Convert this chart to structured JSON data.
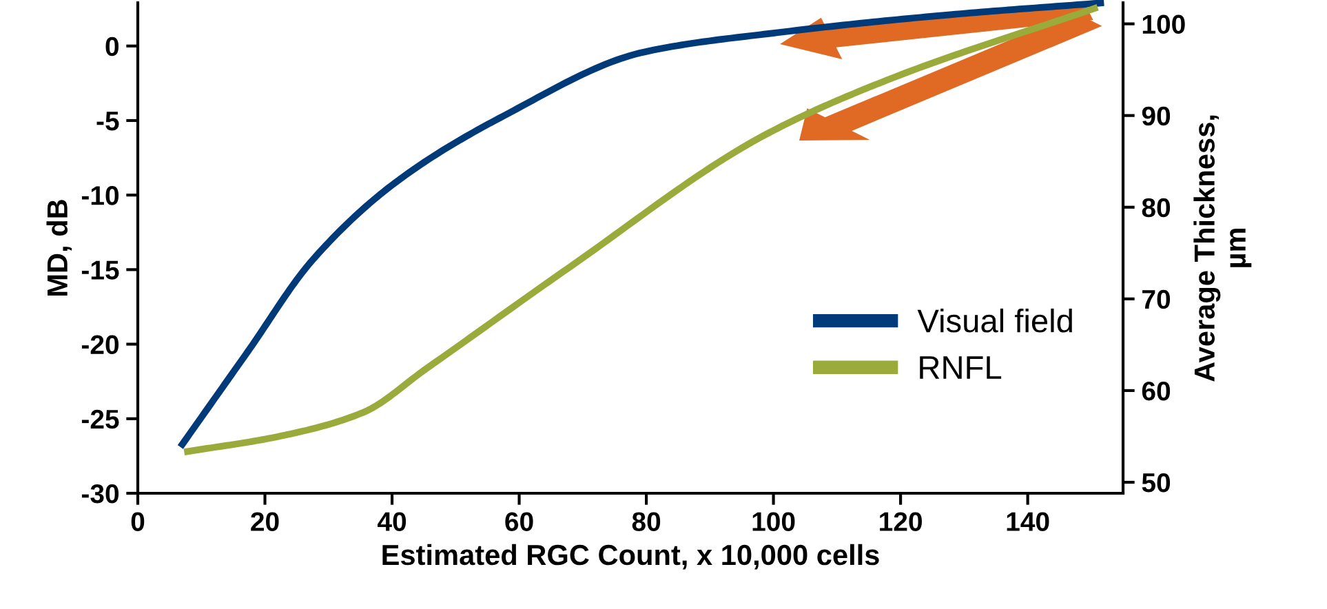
{
  "chart_data": {
    "type": "line",
    "xlabel": "Estimated RGC Count, x 10,000 cells",
    "ylabel": "MD, dB",
    "y2label": "Average Thickness,\nµm",
    "xlim": [
      0,
      155
    ],
    "xticks": [
      0,
      20,
      40,
      60,
      80,
      100,
      120,
      140
    ],
    "ylim": [
      -30,
      2.9
    ],
    "yticks": [
      -30,
      -25,
      -20,
      -15,
      -10,
      -5,
      0
    ],
    "y2lim": [
      48.8,
      102.3
    ],
    "y2ticks": [
      50,
      60,
      70,
      80,
      90,
      100
    ],
    "legend": "lower right",
    "grid": false,
    "marker": "none",
    "line_style": "solid",
    "series": [
      {
        "name": "Visual field",
        "color": "#003a78",
        "x": [
          6.7,
          17.3,
          27.4,
          40.4,
          57.5,
          79.7,
          100.7,
          127.8,
          152
        ],
        "values": [
          -26.9,
          -20.5,
          -14.4,
          -9.2,
          -4.7,
          -0.4,
          0.9,
          2.1,
          2.9
        ]
      },
      {
        "name": "RNFL",
        "color": "#9aab3c",
        "axis": "y2",
        "x": [
          7.3,
          22.2,
          35.4,
          45.4,
          67.6,
          98.7,
          118,
          151
        ],
        "values": [
          53.3,
          55.0,
          57.6,
          62.4,
          73.3,
          87.9,
          93.9,
          101.8
        ]
      }
    ]
  }
}
